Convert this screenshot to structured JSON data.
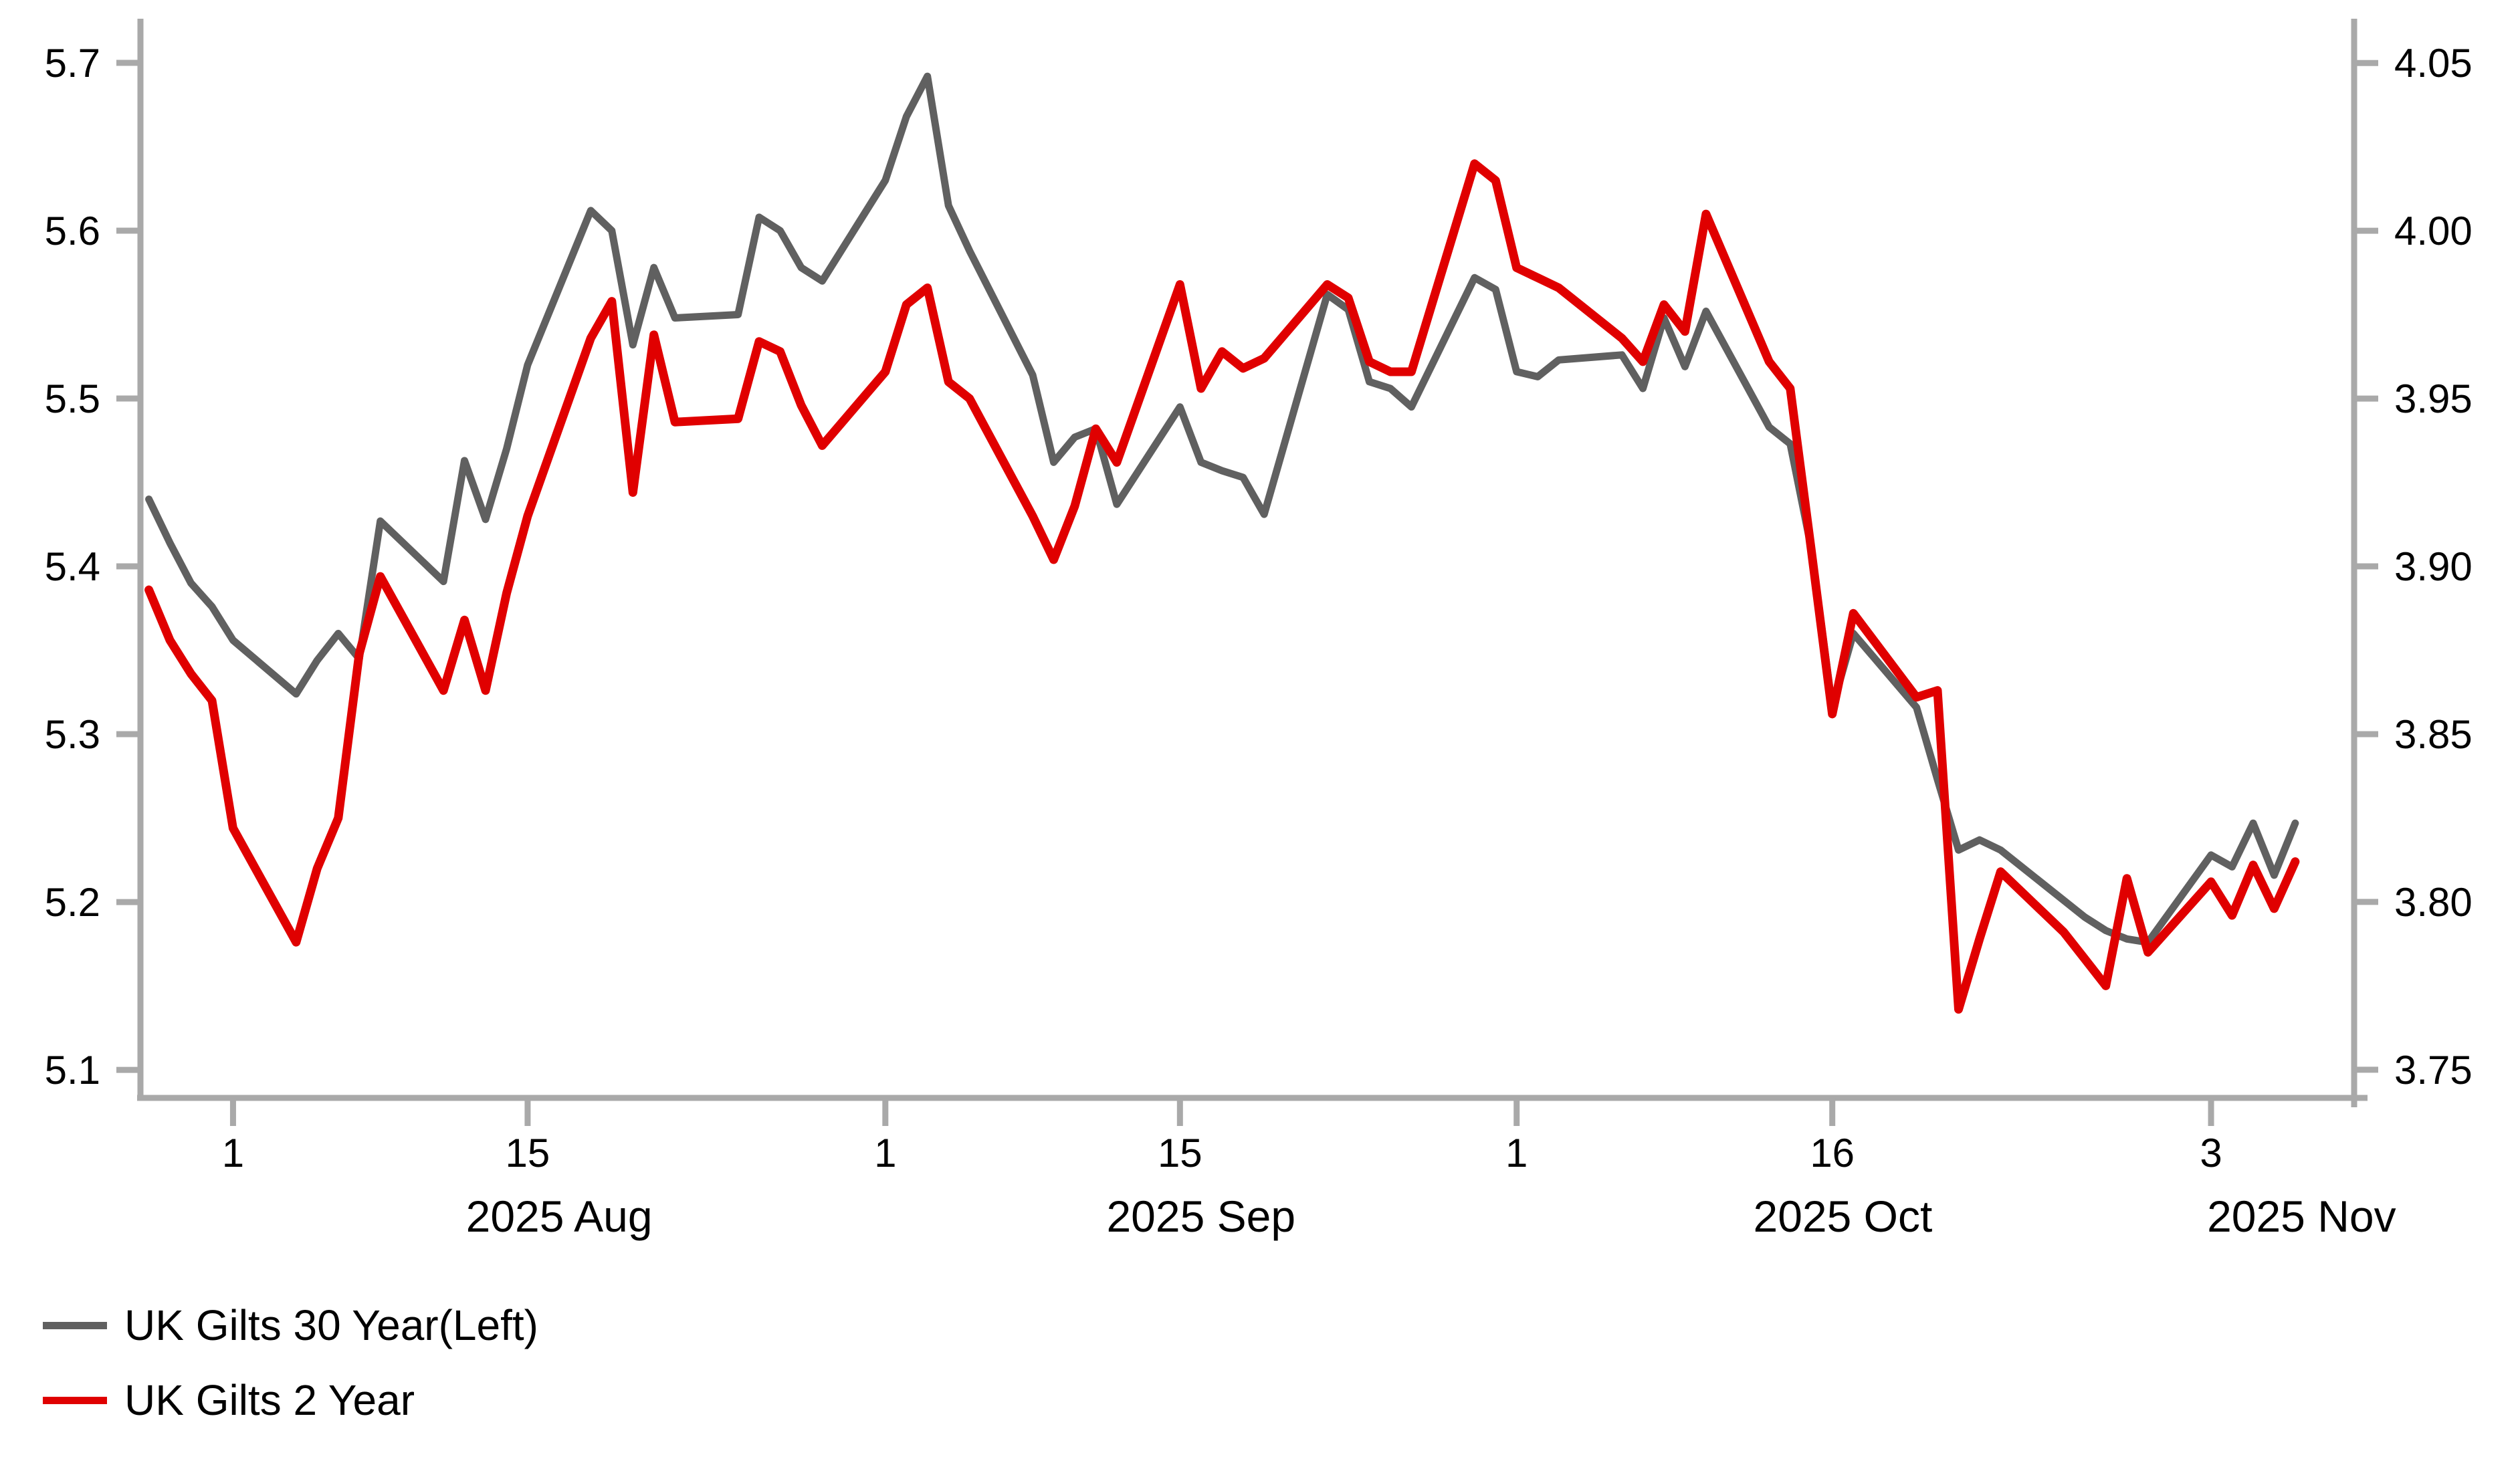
{
  "chart_data": {
    "type": "line",
    "title": "",
    "x_axis": {
      "range_days": [
        -0.4,
        104.8
      ],
      "day_ticks": [
        {
          "day": 4,
          "label": "1"
        },
        {
          "day": 18,
          "label": "15"
        },
        {
          "day": 35,
          "label": "1"
        },
        {
          "day": 49,
          "label": "15"
        },
        {
          "day": 65,
          "label": "1"
        },
        {
          "day": 80,
          "label": "16"
        },
        {
          "day": 98,
          "label": "3"
        }
      ],
      "month_labels": [
        {
          "day": 19.5,
          "label": "2025 Aug"
        },
        {
          "day": 50,
          "label": "2025 Sep"
        },
        {
          "day": 80.5,
          "label": "2025 Oct"
        },
        {
          "day": 102.3,
          "label": "2025 Nov"
        }
      ]
    },
    "left_axis": {
      "range": [
        5.0833,
        5.7247
      ],
      "ticks": [
        5.1,
        5.2,
        5.3,
        5.4,
        5.5,
        5.6,
        5.7
      ],
      "tick_labels": [
        "5.1",
        "5.2",
        "5.3",
        "5.4",
        "5.5",
        "5.6",
        "5.7"
      ]
    },
    "right_axis": {
      "range": [
        3.7416,
        4.0624
      ],
      "ticks": [
        3.75,
        3.8,
        3.85,
        3.9,
        3.95,
        4.0,
        4.05
      ],
      "tick_labels": [
        "3.75",
        "3.80",
        "3.85",
        "3.90",
        "3.95",
        "4.00",
        "4.05"
      ]
    },
    "axis_color": "#a9a9a9",
    "text_color": "#000000",
    "dates": [
      "2025-07-28",
      "2025-07-29",
      "2025-07-30",
      "2025-07-31",
      "2025-08-01",
      "2025-08-04",
      "2025-08-05",
      "2025-08-06",
      "2025-08-07",
      "2025-08-08",
      "2025-08-11",
      "2025-08-12",
      "2025-08-13",
      "2025-08-14",
      "2025-08-15",
      "2025-08-18",
      "2025-08-19",
      "2025-08-20",
      "2025-08-21",
      "2025-08-22",
      "2025-08-25",
      "2025-08-26",
      "2025-08-27",
      "2025-08-28",
      "2025-08-29",
      "2025-09-01",
      "2025-09-02",
      "2025-09-03",
      "2025-09-04",
      "2025-09-05",
      "2025-09-08",
      "2025-09-09",
      "2025-09-10",
      "2025-09-11",
      "2025-09-12",
      "2025-09-15",
      "2025-09-16",
      "2025-09-17",
      "2025-09-18",
      "2025-09-19",
      "2025-09-22",
      "2025-09-23",
      "2025-09-24",
      "2025-09-25",
      "2025-09-26",
      "2025-09-29",
      "2025-09-30",
      "2025-10-01",
      "2025-10-02",
      "2025-10-03",
      "2025-10-06",
      "2025-10-07",
      "2025-10-08",
      "2025-10-09",
      "2025-10-10",
      "2025-10-13",
      "2025-10-14",
      "2025-10-15",
      "2025-10-16",
      "2025-10-17",
      "2025-10-20",
      "2025-10-21",
      "2025-10-22",
      "2025-10-23",
      "2025-10-24",
      "2025-10-27",
      "2025-10-28",
      "2025-10-29",
      "2025-10-30",
      "2025-10-31",
      "2025-11-03",
      "2025-11-04",
      "2025-11-05",
      "2025-11-06",
      "2025-11-07"
    ],
    "x_days": [
      0,
      1,
      2,
      3,
      4,
      7,
      8,
      9,
      10,
      11,
      14,
      15,
      16,
      17,
      18,
      21,
      22,
      23,
      24,
      25,
      28,
      29,
      30,
      31,
      32,
      35,
      36,
      37,
      38,
      39,
      42,
      43,
      44,
      45,
      46,
      49,
      50,
      51,
      52,
      53,
      56,
      57,
      58,
      59,
      60,
      63,
      64,
      65,
      66,
      67,
      70,
      71,
      72,
      73,
      74,
      77,
      78,
      79,
      80,
      81,
      84,
      85,
      86,
      87,
      88,
      91,
      92,
      93,
      94,
      95,
      98,
      99,
      100,
      101,
      102
    ],
    "series": [
      {
        "name": "UK Gilts 30 Year(Left)",
        "axis": "left",
        "color": "#606060",
        "width": 11,
        "values": [
          5.44,
          5.414,
          5.39,
          5.376,
          5.356,
          5.324,
          5.344,
          5.36,
          5.345,
          5.427,
          5.391,
          5.463,
          5.428,
          5.47,
          5.52,
          5.612,
          5.6,
          5.532,
          5.578,
          5.548,
          5.55,
          5.608,
          5.6,
          5.578,
          5.57,
          5.63,
          5.668,
          5.692,
          5.615,
          5.588,
          5.514,
          5.462,
          5.477,
          5.482,
          5.437,
          5.495,
          5.462,
          5.457,
          5.453,
          5.431,
          5.562,
          5.553,
          5.51,
          5.506,
          5.495,
          5.572,
          5.565,
          5.516,
          5.513,
          5.523,
          5.526,
          5.506,
          5.548,
          5.519,
          5.552,
          5.483,
          5.473,
          5.411,
          5.316,
          5.36,
          5.316,
          5.273,
          5.231,
          5.237,
          5.231,
          5.201,
          5.191,
          5.183,
          5.178,
          5.176,
          5.228,
          5.221,
          5.247,
          5.216,
          5.247
        ]
      },
      {
        "name": "UK Gilts 2 Year",
        "axis": "right",
        "color": "#e00000",
        "width": 13,
        "values": [
          3.893,
          3.878,
          3.868,
          3.86,
          3.822,
          3.788,
          3.81,
          3.825,
          3.874,
          3.897,
          3.863,
          3.884,
          3.863,
          3.892,
          3.915,
          3.968,
          3.979,
          3.922,
          3.969,
          3.943,
          3.944,
          3.967,
          3.964,
          3.948,
          3.936,
          3.958,
          3.978,
          3.983,
          3.955,
          3.95,
          3.915,
          3.902,
          3.918,
          3.941,
          3.931,
          3.984,
          3.953,
          3.964,
          3.959,
          3.962,
          3.984,
          3.98,
          3.961,
          3.958,
          3.958,
          4.02,
          4.015,
          3.989,
          3.986,
          3.983,
          3.968,
          3.961,
          3.978,
          3.97,
          4.005,
          3.961,
          3.953,
          3.905,
          3.856,
          3.886,
          3.861,
          3.863,
          3.768,
          3.789,
          3.809,
          3.791,
          3.783,
          3.775,
          3.807,
          3.785,
          3.806,
          3.796,
          3.811,
          3.798,
          3.812
        ]
      }
    ],
    "legend": {
      "position": "bottom-left"
    }
  }
}
